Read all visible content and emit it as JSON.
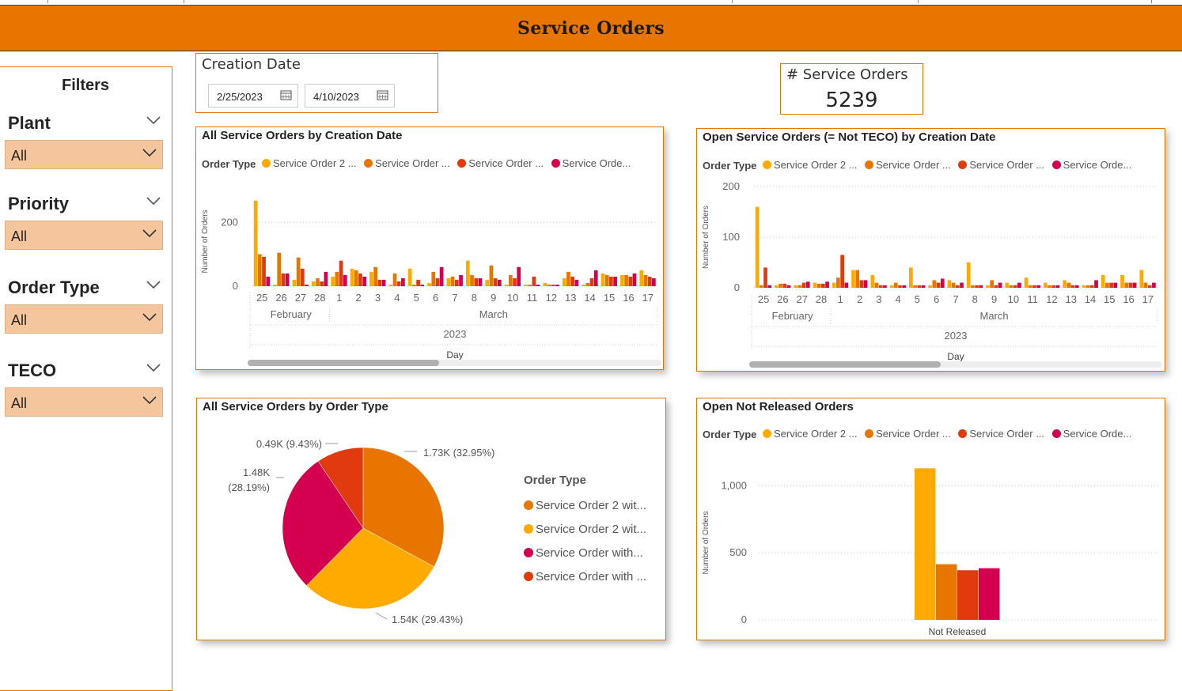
{
  "header": {
    "title": "Service Orders"
  },
  "colors": {
    "orange": "#E87500",
    "yellow": "#FFAA00",
    "red": "#E03A0E",
    "crimson": "#D4004F",
    "filter_bg": "#F5C69E"
  },
  "filters": {
    "title": "Filters",
    "groups": [
      {
        "label": "Plant",
        "value": "All"
      },
      {
        "label": "Priority",
        "value": "All"
      },
      {
        "label": "Order Type",
        "value": "All"
      },
      {
        "label": "TECO",
        "value": "All"
      }
    ]
  },
  "creation_date": {
    "label": "Creation Date",
    "start": "2/25/2023",
    "end": "4/10/2023"
  },
  "kpi": {
    "label": "# Service Orders",
    "value": "5239"
  },
  "legend": {
    "title": "Order Type",
    "items": [
      "Service Order 2 ...",
      "Service Order ...",
      "Service Order ...",
      "Service Orde..."
    ],
    "pie_items": [
      "Service Order 2 wit...",
      "Service Order 2 wit...",
      "Service Order with...",
      "Service Order with ..."
    ]
  },
  "chart_titles": {
    "all_by_date": "All Service Orders by Creation Date",
    "open_by_date": "Open Service Orders (= Not TECO) by Creation Date",
    "by_type": "All Service Orders by Order Type",
    "not_released": "Open Not Released Orders"
  },
  "chart_data": [
    {
      "type": "bar",
      "title": "All Service Orders by Creation Date",
      "xlabel": "Day",
      "ylabel": "Number of Orders",
      "ylim": [
        0,
        280
      ],
      "yticks": [
        0,
        200
      ],
      "categories": [
        "25",
        "26",
        "27",
        "28",
        "1",
        "2",
        "3",
        "4",
        "5",
        "6",
        "7",
        "8",
        "9",
        "10",
        "11",
        "12",
        "13",
        "14",
        "15",
        "16",
        "17"
      ],
      "months": [
        {
          "name": "February",
          "span": 4
        },
        {
          "name": "March",
          "span": 17
        }
      ],
      "year": "2023",
      "series": [
        {
          "color": "#FFAA00",
          "values": [
            268,
            5,
            20,
            15,
            30,
            55,
            45,
            5,
            55,
            10,
            25,
            80,
            20,
            5,
            5,
            10,
            25,
            5,
            40,
            35,
            50
          ]
        },
        {
          "color": "#E87500",
          "values": [
            100,
            105,
            90,
            25,
            45,
            50,
            60,
            40,
            5,
            45,
            30,
            35,
            65,
            35,
            5,
            5,
            45,
            10,
            35,
            35,
            35
          ]
        },
        {
          "color": "#E03A0E",
          "values": [
            92,
            40,
            55,
            15,
            80,
            40,
            20,
            15,
            20,
            25,
            20,
            25,
            25,
            25,
            30,
            5,
            30,
            25,
            30,
            30,
            30
          ]
        },
        {
          "color": "#D4004F",
          "values": [
            30,
            40,
            5,
            45,
            35,
            30,
            20,
            25,
            5,
            60,
            35,
            25,
            20,
            60,
            5,
            5,
            20,
            50,
            30,
            40,
            25
          ]
        }
      ]
    },
    {
      "type": "bar",
      "title": "Open Service Orders (= Not TECO) by Creation Date",
      "xlabel": "Day",
      "ylabel": "Number of Orders",
      "ylim": [
        0,
        200
      ],
      "yticks": [
        0,
        100,
        200
      ],
      "categories": [
        "25",
        "26",
        "27",
        "28",
        "1",
        "2",
        "3",
        "4",
        "5",
        "6",
        "7",
        "8",
        "9",
        "10",
        "11",
        "12",
        "13",
        "14",
        "15",
        "16",
        "17"
      ],
      "months": [
        {
          "name": "February",
          "span": 4
        },
        {
          "name": "March",
          "span": 17
        }
      ],
      "year": "2023",
      "series": [
        {
          "color": "#FFAA00",
          "values": [
            160,
            5,
            5,
            10,
            10,
            35,
            25,
            5,
            40,
            5,
            15,
            50,
            5,
            10,
            20,
            10,
            15,
            5,
            25,
            25,
            35
          ]
        },
        {
          "color": "#E87500",
          "values": [
            5,
            8,
            5,
            8,
            20,
            35,
            10,
            10,
            5,
            15,
            10,
            5,
            15,
            5,
            5,
            5,
            10,
            5,
            10,
            10,
            10
          ]
        },
        {
          "color": "#E03A0E",
          "values": [
            40,
            8,
            10,
            8,
            65,
            15,
            5,
            5,
            5,
            10,
            5,
            5,
            5,
            5,
            5,
            5,
            5,
            5,
            10,
            10,
            5
          ]
        },
        {
          "color": "#D4004F",
          "values": [
            5,
            5,
            12,
            12,
            10,
            15,
            5,
            5,
            5,
            18,
            10,
            5,
            10,
            10,
            5,
            5,
            5,
            15,
            10,
            10,
            10
          ]
        }
      ]
    },
    {
      "type": "pie",
      "title": "All Service Orders by Order Type",
      "legend_title": "Order Type",
      "slices": [
        {
          "label": "1.73K (32.95%)",
          "value": 32.95,
          "color": "#E87500"
        },
        {
          "label": "1.54K (29.43%)",
          "value": 29.43,
          "color": "#FFAA00"
        },
        {
          "label": "1.48K (28.19%)",
          "value": 28.19,
          "color": "#D4004F"
        },
        {
          "label": "0.49K (9.43%)",
          "value": 9.43,
          "color": "#E03A0E"
        }
      ]
    },
    {
      "type": "bar",
      "title": "Open Not Released Orders",
      "ylabel": "Number of Orders",
      "ylim": [
        0,
        1150
      ],
      "yticks": [
        0,
        500,
        1000
      ],
      "ytick_labels": [
        "0",
        "500",
        "1,000"
      ],
      "categories": [
        "Not Released"
      ],
      "series": [
        {
          "color": "#FFAA00",
          "values": [
            1130
          ]
        },
        {
          "color": "#E87500",
          "values": [
            415
          ]
        },
        {
          "color": "#E03A0E",
          "values": [
            370
          ]
        },
        {
          "color": "#D4004F",
          "values": [
            385
          ]
        }
      ]
    }
  ]
}
